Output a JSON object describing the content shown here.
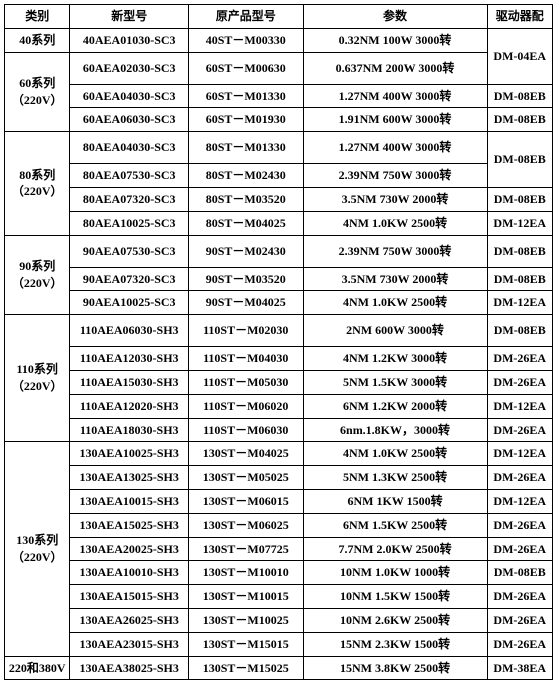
{
  "headers": {
    "category": "类别",
    "newModel": "新型号",
    "oldModel": "原产品型号",
    "params": "参数",
    "driver": "驱动器配"
  },
  "groups": [
    {
      "label": "40系列",
      "rows": [
        {
          "new": "40AEA01030-SC3",
          "old": "40ST－M00330",
          "param": "0.32NM 100W 3000转",
          "drv": "DM-04EA",
          "drvRowspan": 2
        }
      ]
    },
    {
      "label": "60系列\n（220V）",
      "rows": [
        {
          "new": "60AEA02030-SC3",
          "old": "60ST－M00630",
          "param": "0.637NM 200W 3000转",
          "tall": true
        },
        {
          "new": "60AEA04030-SC3",
          "old": "60ST－M01330",
          "param": "1.27NM 400W 3000转",
          "drv": "DM-08EB"
        },
        {
          "new": "60AEA06030-SC3",
          "old": "60ST－M01930",
          "param": "1.91NM 600W 3000转",
          "drv": "DM-08EB"
        }
      ]
    },
    {
      "label": "80系列\n（220V）",
      "rows": [
        {
          "new": "80AEA04030-SC3",
          "old": "80ST－M01330",
          "param": "1.27NM 400W 3000转",
          "drv": "DM-08EB",
          "drvRowspan": 2,
          "tall": true
        },
        {
          "new": "80AEA07530-SC3",
          "old": "80ST－M02430",
          "param": "2.39NM 750W 3000转"
        },
        {
          "new": "80AEA07320-SC3",
          "old": "80ST－M03520",
          "param": "3.5NM 730W 2000转",
          "drv": "DM-08EB"
        },
        {
          "new": "80AEA10025-SC3",
          "old": "80ST－M04025",
          "param": "4NM 1.0KW 2500转",
          "drv": "DM-12EA"
        }
      ]
    },
    {
      "label": "90系列\n（220V）",
      "rows": [
        {
          "new": "90AEA07530-SC3",
          "old": "90ST－M02430",
          "param": "2.39NM 750W 3000转",
          "drv": "DM-08EB",
          "tall": true
        },
        {
          "new": "90AEA07320-SC3",
          "old": "90ST－M03520",
          "param": "3.5NM 730W 2000转",
          "drv": "DM-08EB"
        },
        {
          "new": "90AEA10025-SC3",
          "old": "90ST－M04025",
          "param": "4NM 1.0KW 2500转",
          "drv": "DM-12EA"
        }
      ]
    },
    {
      "label": "110系列\n（220V）",
      "rows": [
        {
          "new": "110AEA06030-SH3",
          "old": "110ST－M02030",
          "param": "2NM 600W 3000转",
          "drv": "DM-08EB",
          "tall": true
        },
        {
          "new": "110AEA12030-SH3",
          "old": "110ST－M04030",
          "param": "4NM 1.2KW 3000转",
          "drv": "DM-26EA"
        },
        {
          "new": "110AEA15030-SH3",
          "old": "110ST－M05030",
          "param": "5NM 1.5KW 3000转",
          "drv": "DM-26EA"
        },
        {
          "new": "110AEA12020-SH3",
          "old": "110ST－M06020",
          "param": "6NM 1.2KW 2000转",
          "drv": "DM-12EA"
        },
        {
          "new": "110AEA18030-SH3",
          "old": "110ST－M06030",
          "param": "6nm.1.8KW，3000转",
          "drv": "DM-26EA"
        }
      ]
    },
    {
      "label": "130系列\n（220V）",
      "rows": [
        {
          "new": "130AEA10025-SH3",
          "old": "130ST－M04025",
          "param": "4NM 1.0KW 2500转",
          "drv": "DM-12EA"
        },
        {
          "new": "130AEA13025-SH3",
          "old": "130ST－M05025",
          "param": "5NM 1.3KW 2500转",
          "drv": "DM-26EA"
        },
        {
          "new": "130AEA10015-SH3",
          "old": "130ST－M06015",
          "param": "6NM 1KW 1500转",
          "drv": "DM-12EA"
        },
        {
          "new": "130AEA15025-SH3",
          "old": "130ST－M06025",
          "param": "6NM 1.5KW 2500转",
          "drv": "DM-26EA"
        },
        {
          "new": "130AEA20025-SH3",
          "old": "130ST－M07725",
          "param": "7.7NM 2.0KW 2500转",
          "drv": "DM-26EA"
        },
        {
          "new": "130AEA10010-SH3",
          "old": "130ST－M10010",
          "param": "10NM 1.0KW 1000转",
          "drv": "DM-08EB"
        },
        {
          "new": "130AEA15015-SH3",
          "old": "130ST－M10015",
          "param": "10NM 1.5KW 1500转",
          "drv": "DM-26EA"
        },
        {
          "new": "130AEA26025-SH3",
          "old": "130ST－M10025",
          "param": "10NM 2.6KW 2500转",
          "drv": "DM-26EA"
        },
        {
          "new": "130AEA23015-SH3",
          "old": "130ST－M15015",
          "param": "15NM 2.3KW 1500转",
          "drv": "DM-26EA"
        }
      ]
    },
    {
      "label": "220和380V",
      "rows": [
        {
          "new": "130AEA38025-SH3",
          "old": "130ST－M15025",
          "param": "15NM 3.8KW 2500转",
          "drv": "DM-38EA"
        }
      ]
    }
  ]
}
